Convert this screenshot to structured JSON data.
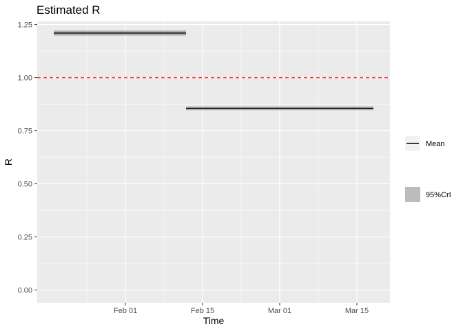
{
  "chart_data": {
    "type": "line",
    "title": "Estimated R",
    "xlabel": "Time",
    "ylabel": "R",
    "x_range": [
      "2021-01-16",
      "2021-03-21"
    ],
    "ylim": [
      -0.06,
      1.265
    ],
    "x_ticks": [
      {
        "date": "2021-02-01",
        "label": "Feb 01"
      },
      {
        "date": "2021-02-15",
        "label": "Feb 15"
      },
      {
        "date": "2021-03-01",
        "label": "Mar 01"
      },
      {
        "date": "2021-03-15",
        "label": "Mar 15"
      }
    ],
    "x_minor_ticks": [
      "2021-01-25",
      "2021-02-08",
      "2021-02-22",
      "2021-03-08"
    ],
    "y_ticks": [
      {
        "value": 0.0,
        "label": "0.00"
      },
      {
        "value": 0.25,
        "label": "0.25"
      },
      {
        "value": 0.5,
        "label": "0.50"
      },
      {
        "value": 0.75,
        "label": "0.75"
      },
      {
        "value": 1.0,
        "label": "1.00"
      },
      {
        "value": 1.25,
        "label": "1.25"
      }
    ],
    "reference_line": {
      "y": 1.0,
      "style": "dashed",
      "color": "#ff3333"
    },
    "series": [
      {
        "name": "Mean",
        "segments": [
          {
            "x_start": "2021-01-19",
            "x_end": "2021-02-12",
            "y": 1.21
          },
          {
            "x_start": "2021-02-12",
            "x_end": "2021-03-18",
            "y": 0.855
          }
        ]
      },
      {
        "name": "95%CrI",
        "segments": [
          {
            "x_start": "2021-01-19",
            "x_end": "2021-02-12",
            "y_low": 1.198,
            "y_high": 1.222
          },
          {
            "x_start": "2021-02-12",
            "x_end": "2021-03-18",
            "y_low": 0.846,
            "y_high": 0.864
          }
        ]
      }
    ],
    "grid": true,
    "legend_position": "right",
    "colors": {
      "panel": "#ebebeb",
      "grid": "#ffffff",
      "mean_line": "#000000",
      "ribbon": "#a6a6a6",
      "reference": "#ff3333",
      "legend_key_bg": "#f2f2f2"
    }
  }
}
